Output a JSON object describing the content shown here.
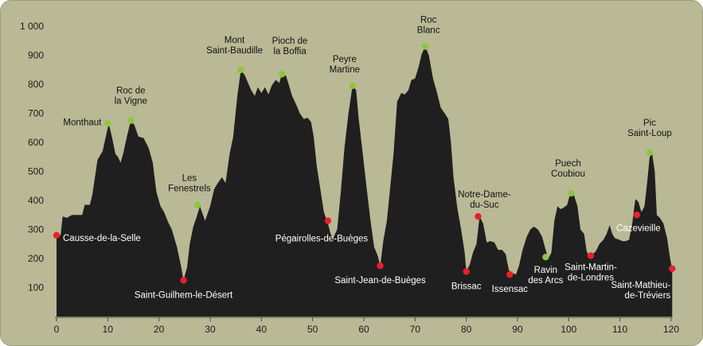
{
  "chart_data": {
    "type": "area",
    "title": "",
    "xlabel": "",
    "ylabel": "",
    "xlim": [
      0,
      120
    ],
    "ylim": [
      0,
      1000
    ],
    "x_ticks": [
      0,
      10,
      20,
      30,
      40,
      50,
      60,
      70,
      80,
      90,
      100,
      110,
      120
    ],
    "y_ticks": [
      {
        "value": 100,
        "label": "100"
      },
      {
        "value": 200,
        "label": "200"
      },
      {
        "value": 300,
        "label": "300"
      },
      {
        "value": 400,
        "label": "400"
      },
      {
        "value": 500,
        "label": "500"
      },
      {
        "value": 600,
        "label": "600"
      },
      {
        "value": 700,
        "label": "700"
      },
      {
        "value": 800,
        "label": "800"
      },
      {
        "value": 900,
        "label": "900"
      },
      {
        "value": 1000,
        "label": "1 000"
      }
    ],
    "colors": {
      "frame": "#b9b996",
      "profile": "#1f1f1f",
      "summit": "#8cc63f",
      "pass": "#e8202a"
    },
    "profile": [
      [
        0,
        280
      ],
      [
        0.8,
        280
      ],
      [
        1.2,
        345
      ],
      [
        2,
        340
      ],
      [
        3,
        350
      ],
      [
        5,
        350
      ],
      [
        5.5,
        385
      ],
      [
        6.5,
        385
      ],
      [
        7,
        420
      ],
      [
        8,
        540
      ],
      [
        9,
        570
      ],
      [
        9.5,
        610
      ],
      [
        10.2,
        665
      ],
      [
        10.8,
        620
      ],
      [
        11.5,
        560
      ],
      [
        12,
        550
      ],
      [
        12.5,
        530
      ],
      [
        13,
        560
      ],
      [
        13.8,
        625
      ],
      [
        14.5,
        675
      ],
      [
        15.2,
        660
      ],
      [
        16,
        620
      ],
      [
        17,
        615
      ],
      [
        18,
        580
      ],
      [
        18.8,
        530
      ],
      [
        19.5,
        430
      ],
      [
        20.3,
        380
      ],
      [
        21,
        360
      ],
      [
        21.8,
        325
      ],
      [
        22.5,
        300
      ],
      [
        23.5,
        240
      ],
      [
        24.3,
        175
      ],
      [
        24.8,
        125
      ],
      [
        25.5,
        170
      ],
      [
        26,
        250
      ],
      [
        26.7,
        310
      ],
      [
        27.3,
        340
      ],
      [
        28,
        380
      ],
      [
        29,
        330
      ],
      [
        30,
        380
      ],
      [
        30.8,
        440
      ],
      [
        31.5,
        460
      ],
      [
        32.3,
        480
      ],
      [
        33,
        460
      ],
      [
        33.8,
        560
      ],
      [
        34.5,
        620
      ],
      [
        35.3,
        760
      ],
      [
        36,
        850
      ],
      [
        36.8,
        830
      ],
      [
        37.5,
        800
      ],
      [
        38,
        780
      ],
      [
        38.7,
        760
      ],
      [
        39.3,
        790
      ],
      [
        40,
        770
      ],
      [
        40.7,
        790
      ],
      [
        41.4,
        765
      ],
      [
        42,
        795
      ],
      [
        42.8,
        815
      ],
      [
        43.5,
        805
      ],
      [
        44,
        835
      ],
      [
        44.8,
        830
      ],
      [
        45.5,
        790
      ],
      [
        46,
        760
      ],
      [
        46.8,
        730
      ],
      [
        47.5,
        700
      ],
      [
        48.3,
        680
      ],
      [
        49,
        685
      ],
      [
        49.7,
        670
      ],
      [
        50.2,
        620
      ],
      [
        50.8,
        520
      ],
      [
        51.5,
        440
      ],
      [
        52.2,
        360
      ],
      [
        53,
        320
      ],
      [
        53.5,
        285
      ],
      [
        54,
        270
      ],
      [
        54.8,
        300
      ],
      [
        55.5,
        430
      ],
      [
        56.2,
        580
      ],
      [
        57,
        700
      ],
      [
        57.8,
        795
      ],
      [
        58.5,
        780
      ],
      [
        59,
        680
      ],
      [
        59.8,
        560
      ],
      [
        60.5,
        450
      ],
      [
        61.3,
        330
      ],
      [
        62,
        240
      ],
      [
        62.7,
        210
      ],
      [
        63.2,
        175
      ],
      [
        63.8,
        260
      ],
      [
        64.5,
        330
      ],
      [
        65,
        420
      ],
      [
        65.8,
        560
      ],
      [
        66.5,
        740
      ],
      [
        67.3,
        770
      ],
      [
        68,
        765
      ],
      [
        68.7,
        780
      ],
      [
        69.3,
        815
      ],
      [
        70,
        820
      ],
      [
        70.7,
        860
      ],
      [
        71.3,
        905
      ],
      [
        72,
        930
      ],
      [
        72.7,
        900
      ],
      [
        73.5,
        820
      ],
      [
        74.3,
        770
      ],
      [
        75,
        720
      ],
      [
        75.8,
        700
      ],
      [
        76.5,
        680
      ],
      [
        77,
        600
      ],
      [
        77.5,
        480
      ],
      [
        78.2,
        380
      ],
      [
        79,
        300
      ],
      [
        79.7,
        220
      ],
      [
        80,
        155
      ],
      [
        80.7,
        180
      ],
      [
        81.3,
        220
      ],
      [
        82,
        250
      ],
      [
        82.6,
        345
      ],
      [
        83.3,
        320
      ],
      [
        84,
        255
      ],
      [
        84.7,
        260
      ],
      [
        85.5,
        255
      ],
      [
        86.2,
        230
      ],
      [
        87,
        230
      ],
      [
        87.7,
        215
      ],
      [
        88.3,
        160
      ],
      [
        89,
        150
      ],
      [
        89.7,
        145
      ],
      [
        90.3,
        175
      ],
      [
        91,
        230
      ],
      [
        91.8,
        275
      ],
      [
        92.5,
        300
      ],
      [
        93.2,
        310
      ],
      [
        94,
        300
      ],
      [
        94.8,
        275
      ],
      [
        95.5,
        230
      ],
      [
        96,
        200
      ],
      [
        96.6,
        220
      ],
      [
        97.2,
        330
      ],
      [
        97.8,
        380
      ],
      [
        98.4,
        370
      ],
      [
        99,
        375
      ],
      [
        99.7,
        385
      ],
      [
        100.3,
        425
      ],
      [
        101,
        420
      ],
      [
        101.7,
        380
      ],
      [
        102.3,
        300
      ],
      [
        103,
        285
      ],
      [
        103.5,
        225
      ],
      [
        104,
        205
      ],
      [
        104.7,
        215
      ],
      [
        105.3,
        225
      ],
      [
        106,
        250
      ],
      [
        106.8,
        265
      ],
      [
        107.4,
        285
      ],
      [
        108,
        315
      ],
      [
        108.5,
        285
      ],
      [
        109,
        270
      ],
      [
        109.8,
        265
      ],
      [
        110.5,
        260
      ],
      [
        111.2,
        260
      ],
      [
        111.8,
        265
      ],
      [
        112.4,
        320
      ],
      [
        113,
        405
      ],
      [
        113.6,
        395
      ],
      [
        114.2,
        360
      ],
      [
        114.8,
        380
      ],
      [
        115.3,
        460
      ],
      [
        115.8,
        550
      ],
      [
        116.3,
        560
      ],
      [
        116.8,
        500
      ],
      [
        117.2,
        350
      ],
      [
        117.8,
        340
      ],
      [
        118.5,
        320
      ],
      [
        119.2,
        270
      ],
      [
        119.8,
        200
      ],
      [
        120.2,
        165
      ]
    ],
    "points": [
      {
        "label": [
          "Causse-de-la-Selle"
        ],
        "x": 0,
        "y": 280,
        "kind": "pass",
        "anchor": "start",
        "ldx": 8,
        "ldy": 7,
        "text": "light"
      },
      {
        "label": [
          "Monthaut"
        ],
        "x": 10,
        "y": 665,
        "kind": "summit",
        "anchor": "end",
        "ldx": -8,
        "ldy": 2,
        "text": "dark"
      },
      {
        "label": [
          "Roc de",
          "la Vigne"
        ],
        "x": 14.5,
        "y": 675,
        "kind": "summit",
        "anchor": "middle",
        "ldx": 0,
        "ldy": -34,
        "text": "dark"
      },
      {
        "label": [
          "Saint-Guilhem-le-Désert"
        ],
        "x": 24.8,
        "y": 125,
        "kind": "pass",
        "anchor": "middle",
        "ldx": 0,
        "ldy": 22,
        "text": "light"
      },
      {
        "label": [
          "Les",
          "Fenestrels"
        ],
        "x": 27.5,
        "y": 385,
        "kind": "summit",
        "anchor": "middle",
        "ldx": -10,
        "ldy": -30,
        "text": "dark"
      },
      {
        "label": [
          "Mont",
          "Saint-Baudille"
        ],
        "x": 36,
        "y": 850,
        "kind": "summit",
        "anchor": "middle",
        "ldx": -8,
        "ldy": -34,
        "text": "dark"
      },
      {
        "label": [
          "Pioch de",
          "la Boffia"
        ],
        "x": 44,
        "y": 835,
        "kind": "summit",
        "anchor": "middle",
        "ldx": 10,
        "ldy": -38,
        "text": "dark"
      },
      {
        "label": [
          "Pégairolles-de-Buèges"
        ],
        "x": 53,
        "y": 330,
        "kind": "pass",
        "anchor": "middle",
        "ldx": -8,
        "ldy": 26,
        "text": "light"
      },
      {
        "label": [
          "Peyre",
          "Martine"
        ],
        "x": 57.8,
        "y": 795,
        "kind": "summit",
        "anchor": "middle",
        "ldx": -10,
        "ldy": -30,
        "text": "dark"
      },
      {
        "label": [
          "Saint-Jean-de-Buèges"
        ],
        "x": 63.2,
        "y": 175,
        "kind": "pass",
        "anchor": "middle",
        "ldx": 0,
        "ldy": 22,
        "text": "light"
      },
      {
        "label": [
          "Roc",
          "Blanc"
        ],
        "x": 72,
        "y": 930,
        "kind": "summit",
        "anchor": "middle",
        "ldx": 4,
        "ldy": -30,
        "text": "dark"
      },
      {
        "label": [
          "Brissac"
        ],
        "x": 80,
        "y": 155,
        "kind": "pass",
        "anchor": "middle",
        "ldx": 0,
        "ldy": 22,
        "text": "light"
      },
      {
        "label": [
          "Notre-Dame-",
          "du-Suc"
        ],
        "x": 82.3,
        "y": 345,
        "kind": "pass",
        "anchor": "middle",
        "ldx": 8,
        "ldy": -24,
        "text": "dark"
      },
      {
        "label": [
          "Issensac"
        ],
        "x": 88.5,
        "y": 145,
        "kind": "pass",
        "anchor": "middle",
        "ldx": 0,
        "ldy": 22,
        "text": "light"
      },
      {
        "label": [
          "Ravin",
          "des Arcs"
        ],
        "x": 95.5,
        "y": 205,
        "kind": "summit",
        "anchor": "middle",
        "ldx": 0,
        "ldy": 20,
        "text": "light"
      },
      {
        "label": [
          "Puech",
          "Coubiou"
        ],
        "x": 100.5,
        "y": 425,
        "kind": "summit",
        "anchor": "middle",
        "ldx": -4,
        "ldy": -34,
        "text": "dark"
      },
      {
        "label": [
          "Saint-Martin-",
          "de-Londres"
        ],
        "x": 104.3,
        "y": 210,
        "kind": "pass",
        "anchor": "middle",
        "ldx": 0,
        "ldy": 18,
        "text": "light"
      },
      {
        "label": [
          "Cazevieille"
        ],
        "x": 113.3,
        "y": 350,
        "kind": "pass",
        "anchor": "middle",
        "ldx": 2,
        "ldy": 20,
        "text": "light"
      },
      {
        "label": [
          "Pic",
          "Saint-Loup"
        ],
        "x": 115.8,
        "y": 565,
        "kind": "summit",
        "anchor": "middle",
        "ldx": 0,
        "ldy": -34,
        "text": "dark"
      },
      {
        "label": [
          "Saint-Mathieu-",
          "de-Tréviers"
        ],
        "x": 120.2,
        "y": 165,
        "kind": "pass",
        "anchor": "end",
        "ldx": -2,
        "ldy": 24,
        "text": "light"
      }
    ]
  }
}
